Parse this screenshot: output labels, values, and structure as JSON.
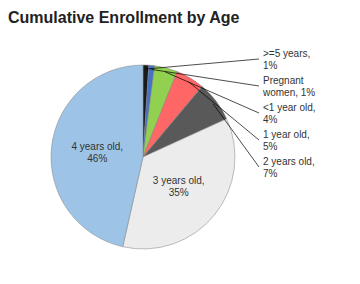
{
  "chart_data": {
    "type": "pie",
    "title": "Cumulative Enrollment by Age",
    "categories": [
      ">=5 years,\n1%",
      "Pregnant\nwomen, 1%",
      "<1 year old,\n4%",
      "1 year old,\n5%",
      "2 years old,\n7%",
      "3 years old,\n35%",
      "4 years old,\n46%"
    ],
    "values": [
      1,
      1,
      4,
      5,
      7,
      35,
      46
    ],
    "colors": [
      "#1a1a1a",
      "#4472C4",
      "#92D050",
      "#FF6666",
      "#595959",
      "#ECECEC",
      "#9DC3E6"
    ]
  }
}
